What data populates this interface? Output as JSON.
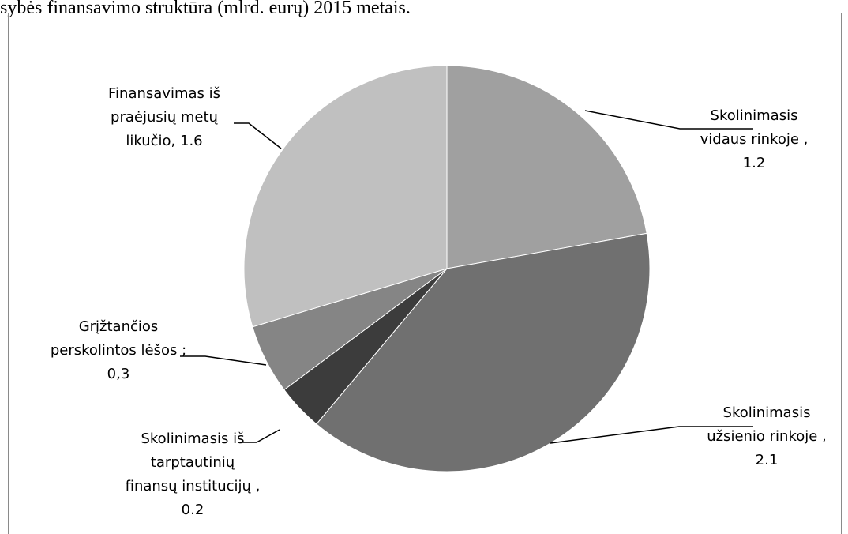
{
  "caption": "sybės finansavimo struktūra (mlrd. eurų) 2015 metais.",
  "chart_data": {
    "type": "pie",
    "title": "",
    "slices": [
      {
        "label_lines": [
          "Skolinimasis",
          "vidaus rinkoje ,",
          "1.2"
        ],
        "value": 1.2,
        "color": "#a0a0a0"
      },
      {
        "label_lines": [
          "Skolinimasis",
          "užsienio rinkoje ,",
          "2.1"
        ],
        "value": 2.1,
        "color": "#707070"
      },
      {
        "label_lines": [
          "Skolinimasis iš",
          "tarptautinių",
          "finansų institucijų ,",
          "0.2"
        ],
        "value": 0.2,
        "color": "#3c3c3c"
      },
      {
        "label_lines": [
          "Grįžtančios",
          "perskolintos lėšos ;",
          "0,3"
        ],
        "value": 0.3,
        "color": "#858585"
      },
      {
        "label_lines": [
          "Finansavimas iš",
          "praėjusių metų",
          "likučio, 1.6"
        ],
        "value": 1.6,
        "color": "#c0c0c0"
      }
    ],
    "start_angle_deg": 0,
    "direction": "clockwise",
    "legend": "none"
  }
}
